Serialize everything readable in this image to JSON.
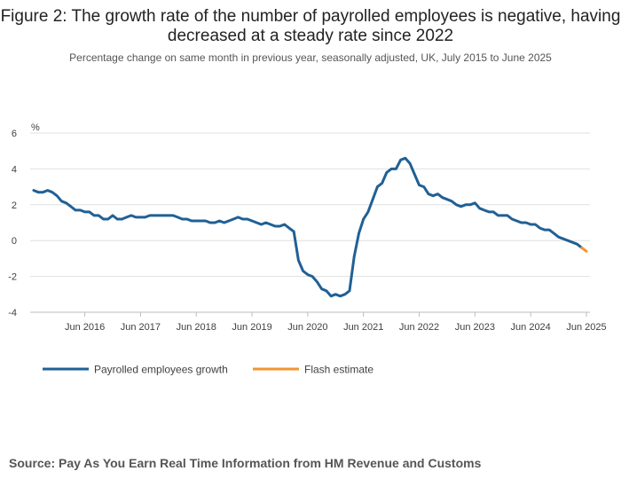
{
  "title": "Figure 2: The growth rate of the number of payrolled employees is negative, having decreased at a steady rate since 2022",
  "subtitle": "Percentage change on same month in previous year, seasonally adjusted, UK, July 2015 to June 2025",
  "source": "Source: Pay As You Earn Real Time Information from HM Revenue and Customs",
  "colors": {
    "main": "#206095",
    "flash": "#F39431",
    "grid": "#e0e0e0",
    "axis": "#bdbdbd"
  },
  "chart_data": {
    "type": "line",
    "ylabel": "%",
    "ylim": [
      -4,
      6
    ],
    "yticks": [
      -4,
      -2,
      0,
      2,
      4,
      6
    ],
    "x_start": "Jul 2015",
    "xticks": [
      {
        "label": "Jun 2016",
        "month_index": 11
      },
      {
        "label": "Jun 2017",
        "month_index": 23
      },
      {
        "label": "Jun 2018",
        "month_index": 35
      },
      {
        "label": "Jun 2019",
        "month_index": 47
      },
      {
        "label": "Jun 2020",
        "month_index": 59
      },
      {
        "label": "Jun 2021",
        "month_index": 71
      },
      {
        "label": "Jun 2022",
        "month_index": 83
      },
      {
        "label": "Jun 2023",
        "month_index": 95
      },
      {
        "label": "Jun 2024",
        "month_index": 107
      },
      {
        "label": "Jun 2025",
        "month_index": 119
      }
    ],
    "legend_position": "bottom-left",
    "series": [
      {
        "name": "Payrolled employees growth",
        "color": "#206095",
        "values": [
          2.8,
          2.7,
          2.7,
          2.8,
          2.7,
          2.5,
          2.2,
          2.1,
          1.9,
          1.7,
          1.7,
          1.6,
          1.6,
          1.4,
          1.4,
          1.2,
          1.2,
          1.4,
          1.2,
          1.2,
          1.3,
          1.4,
          1.3,
          1.3,
          1.3,
          1.4,
          1.4,
          1.4,
          1.4,
          1.4,
          1.4,
          1.3,
          1.2,
          1.2,
          1.1,
          1.1,
          1.1,
          1.1,
          1.0,
          1.0,
          1.1,
          1.0,
          1.1,
          1.2,
          1.3,
          1.2,
          1.2,
          1.1,
          1.0,
          0.9,
          1.0,
          0.9,
          0.8,
          0.8,
          0.9,
          0.7,
          0.5,
          -1.1,
          -1.7,
          -1.9,
          -2.0,
          -2.3,
          -2.7,
          -2.8,
          -3.1,
          -3.0,
          -3.1,
          -3.0,
          -2.8,
          -0.9,
          0.4,
          1.2,
          1.6,
          2.3,
          3.0,
          3.2,
          3.8,
          4.0,
          4.0,
          4.5,
          4.6,
          4.3,
          3.7,
          3.1,
          3.0,
          2.6,
          2.5,
          2.6,
          2.4,
          2.3,
          2.2,
          2.0,
          1.9,
          2.0,
          2.0,
          2.1,
          1.8,
          1.7,
          1.6,
          1.6,
          1.4,
          1.4,
          1.4,
          1.2,
          1.1,
          1.0,
          1.0,
          0.9,
          0.9,
          0.7,
          0.6,
          0.6,
          0.4,
          0.2,
          0.1,
          0.0,
          -0.1,
          -0.2,
          -0.4,
          null
        ]
      },
      {
        "name": "Flash estimate",
        "color": "#F39431",
        "values_by_index": {
          "118": -0.4,
          "119": -0.6
        }
      }
    ]
  }
}
